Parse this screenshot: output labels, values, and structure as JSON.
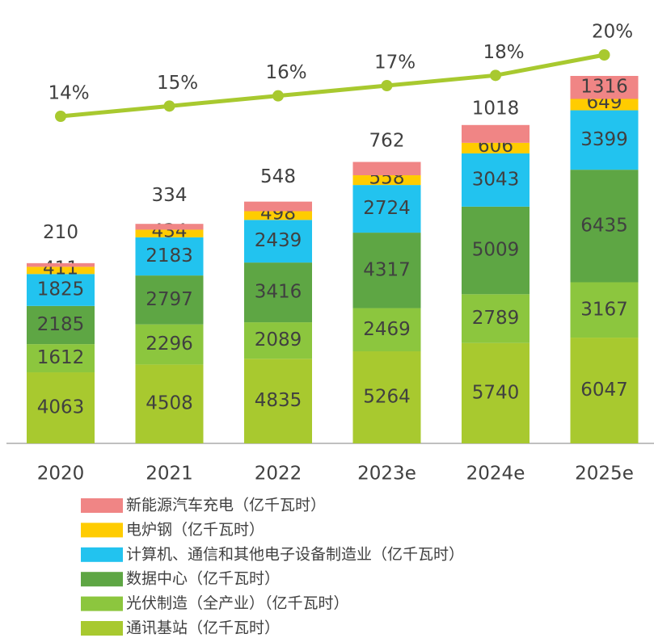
{
  "chart_data": {
    "type": "bar",
    "stacked": true,
    "categories": [
      "2020",
      "2021",
      "2022",
      "2023e",
      "2024e",
      "2025e"
    ],
    "series": [
      {
        "name": "通讯基站（亿千瓦时）",
        "color": "#a8c92f",
        "values": [
          4063,
          4508,
          4835,
          5264,
          5740,
          6047
        ]
      },
      {
        "name": "光伏制造（全产业）（亿千瓦时）",
        "color": "#8cc63e",
        "values": [
          1612,
          2296,
          2089,
          2469,
          2789,
          3167
        ]
      },
      {
        "name": "数据中心（亿千瓦时）",
        "color": "#5ea644",
        "values": [
          2185,
          2797,
          3416,
          4317,
          5009,
          6435
        ]
      },
      {
        "name": "计算机、通信和其他电子设备制造业（亿千瓦时）",
        "color": "#22c3ef",
        "values": [
          1825,
          2183,
          2439,
          2724,
          3043,
          3399
        ]
      },
      {
        "name": "电炉钢（亿千瓦时）",
        "color": "#ffcc00",
        "values": [
          411,
          434,
          498,
          558,
          606,
          649
        ]
      },
      {
        "name": "新能源汽车充电（亿千瓦时）",
        "color": "#f08585",
        "values": [
          210,
          334,
          548,
          762,
          1018,
          1316
        ]
      },
      {
        "type": "line",
        "color": "#a8c92f",
        "values": [
          14,
          15,
          16,
          17,
          18,
          20
        ],
        "value_labels": [
          "14%",
          "15%",
          "16%",
          "17%",
          "18%",
          "20%"
        ]
      }
    ]
  }
}
